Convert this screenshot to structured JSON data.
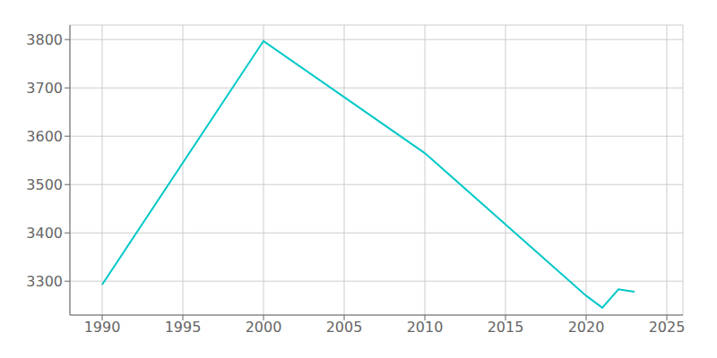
{
  "chart_data": {
    "type": "line",
    "x": [
      1990,
      2000,
      2010,
      2020,
      2021,
      2022,
      2023
    ],
    "values": [
      3293,
      3797,
      3565,
      3270,
      3245,
      3283,
      3278
    ],
    "color": "#00C8C8",
    "xlim": [
      1988,
      2026
    ],
    "ylim": [
      3230,
      3830
    ],
    "xticks": [
      1990,
      1995,
      2000,
      2005,
      2010,
      2015,
      2020,
      2025
    ],
    "yticks": [
      3300,
      3400,
      3500,
      3600,
      3700,
      3800
    ],
    "grid": true
  }
}
